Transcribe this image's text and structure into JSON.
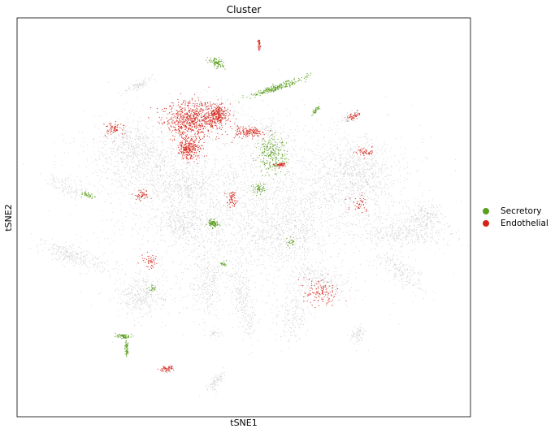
{
  "chart_data": {
    "type": "scatter",
    "title": "Cluster",
    "xlabel": "tSNE1",
    "ylabel": "tSNE2",
    "ticks_shown": false,
    "grid": false,
    "legend_position": "right-center",
    "background_color": "#cccccc",
    "series": [
      {
        "name": "Secretory",
        "color": "#5a9e1e"
      },
      {
        "name": "Endothelial",
        "color": "#d62418"
      }
    ]
  }
}
